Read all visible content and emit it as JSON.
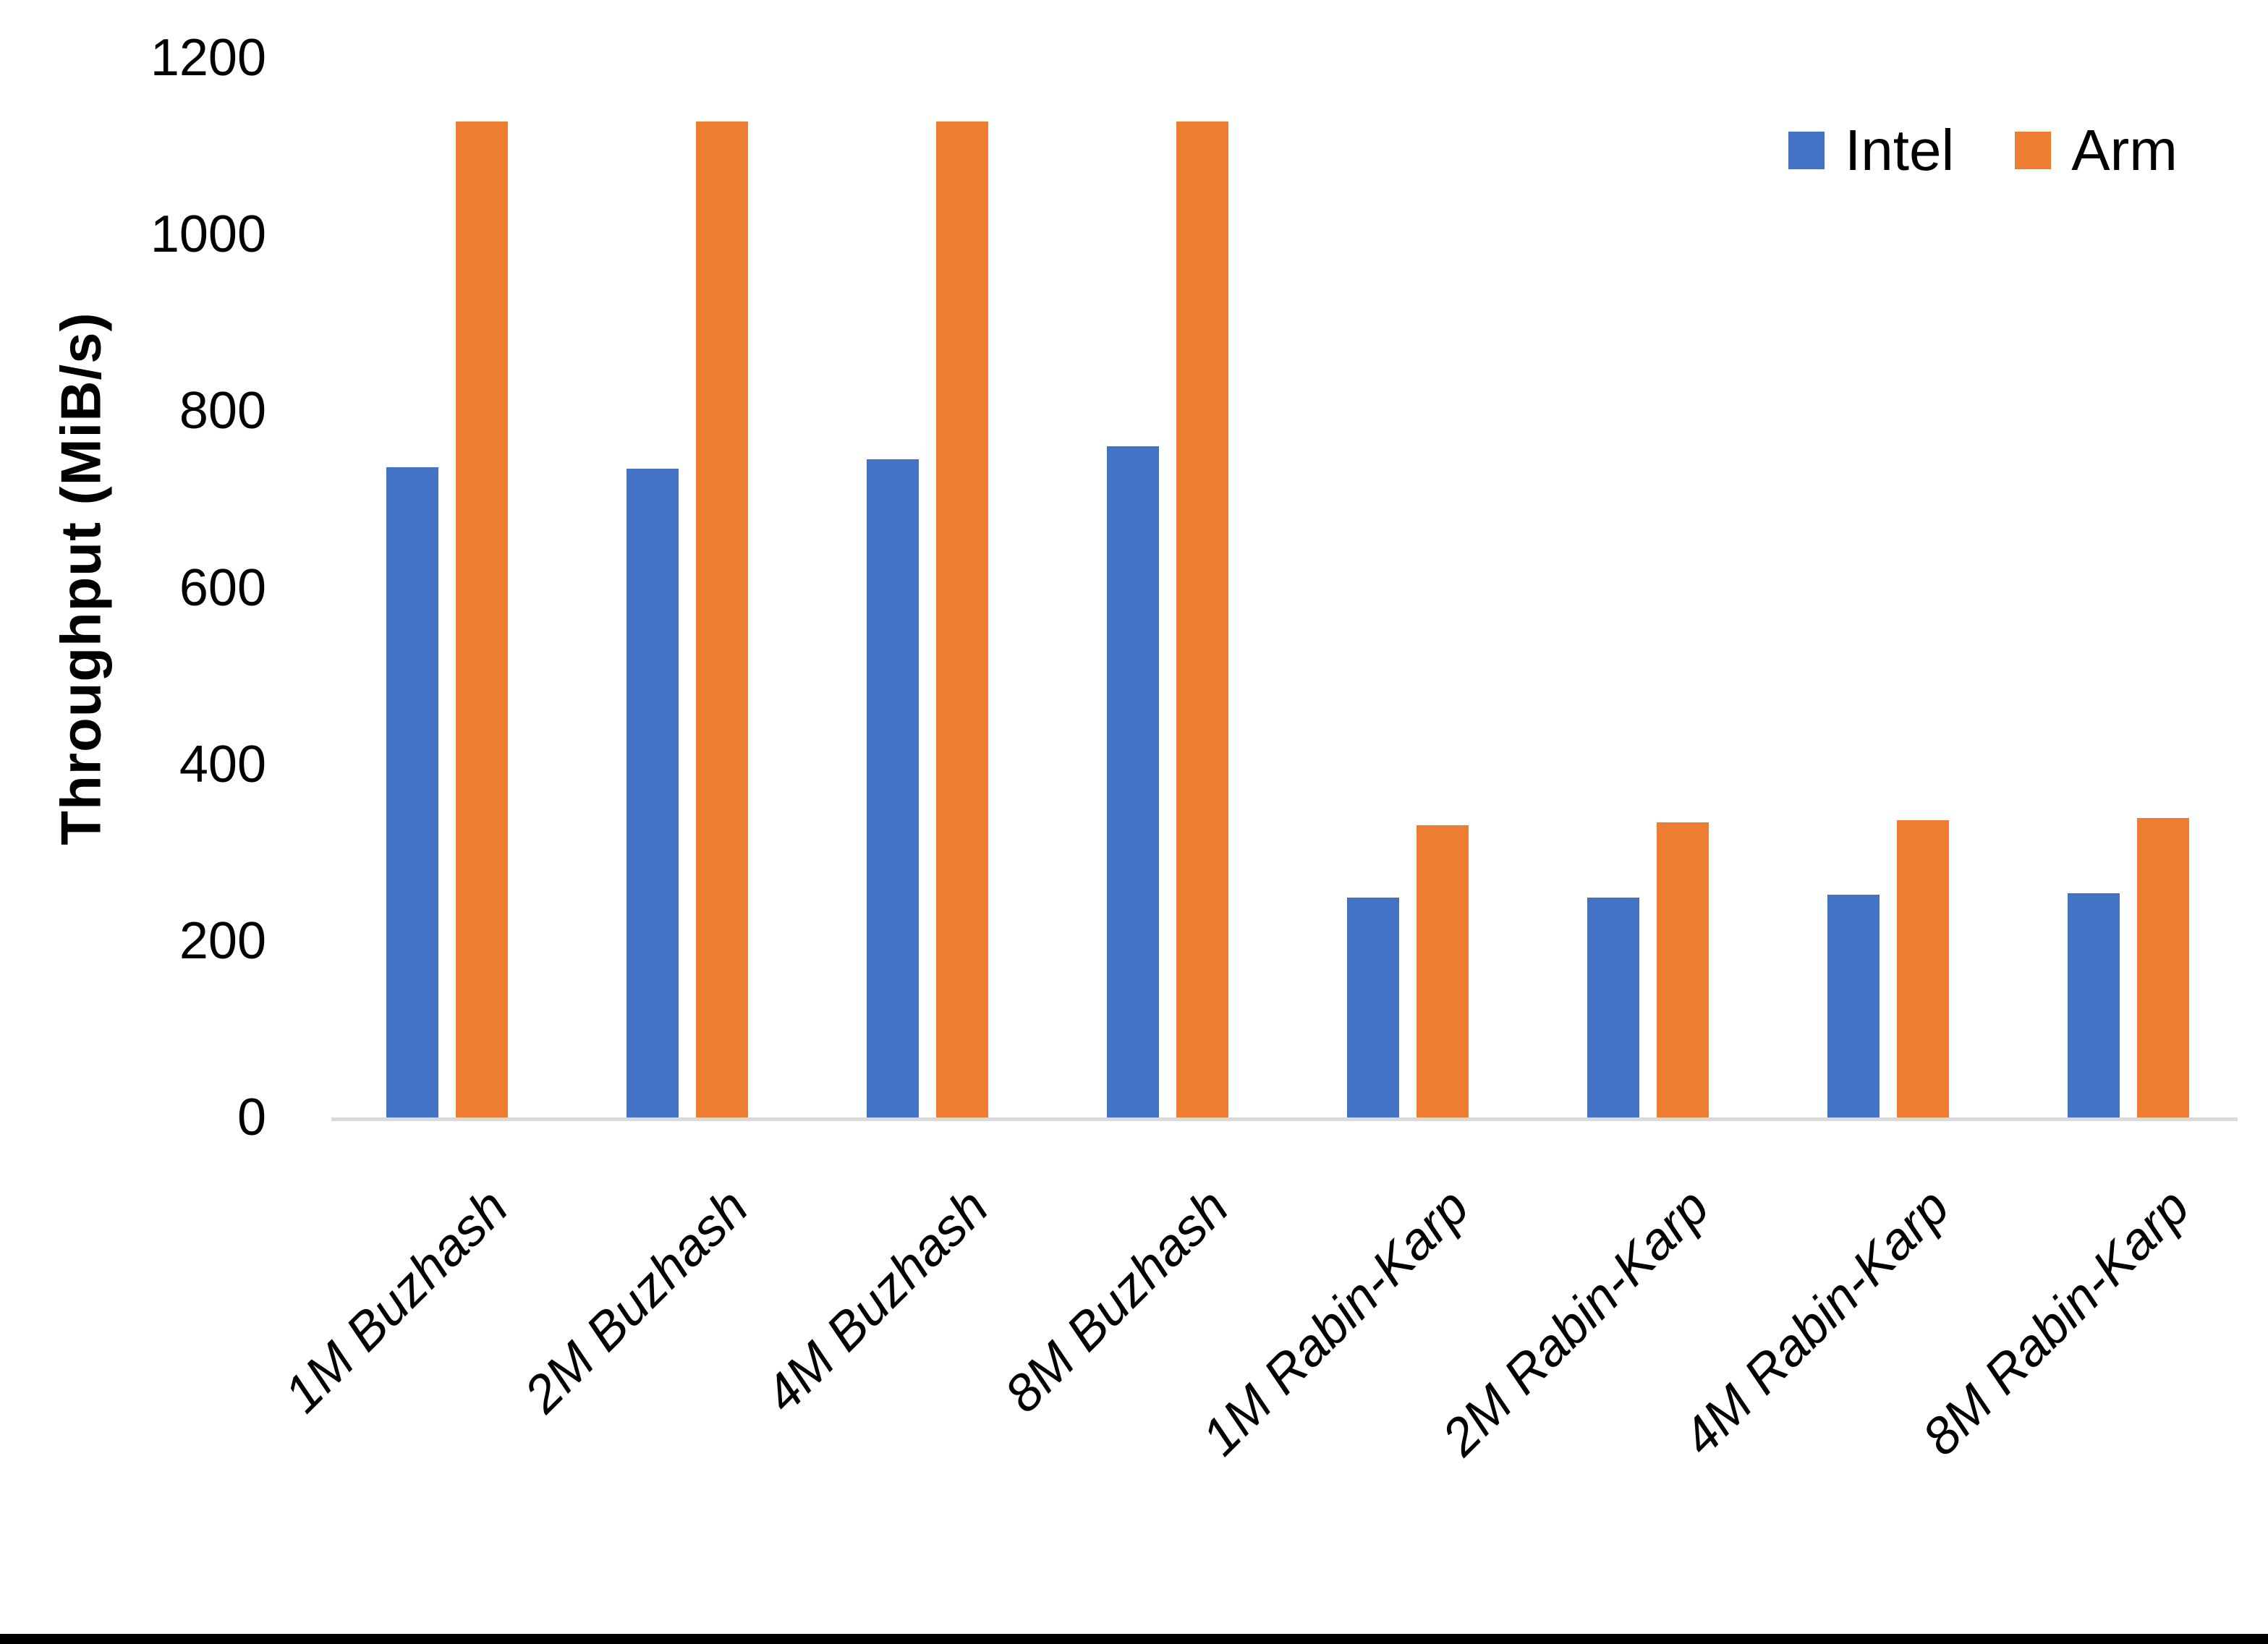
{
  "chart_data": {
    "type": "bar",
    "title": "",
    "xlabel": "",
    "ylabel": "Throughput (MiB/s)",
    "categories": [
      "1M Buzhash",
      "2M Buzhash",
      "4M Buzhash",
      "8M Buzhash",
      "1M Rabin-Karp",
      "2M Rabin-Karp",
      "4M Rabin-Karp",
      "8M Rabin-Karp"
    ],
    "series": [
      {
        "name": "Intel",
        "color": "#4472C4",
        "values": [
          736,
          735,
          745,
          760,
          249,
          249,
          252,
          254
        ]
      },
      {
        "name": "Arm",
        "color": "#ED7D31",
        "values": [
          1128,
          1128,
          1128,
          1128,
          331,
          334,
          337,
          339
        ]
      }
    ],
    "ylim": [
      0,
      1200
    ],
    "yticks": [
      0,
      200,
      400,
      600,
      800,
      1000,
      1200
    ],
    "grid": false,
    "legend_position": "top-right"
  },
  "colors": {
    "background": "#FFFFFF",
    "axis_line": "#D9D9D9",
    "text": "#000000",
    "bottom_border": "#000000"
  }
}
